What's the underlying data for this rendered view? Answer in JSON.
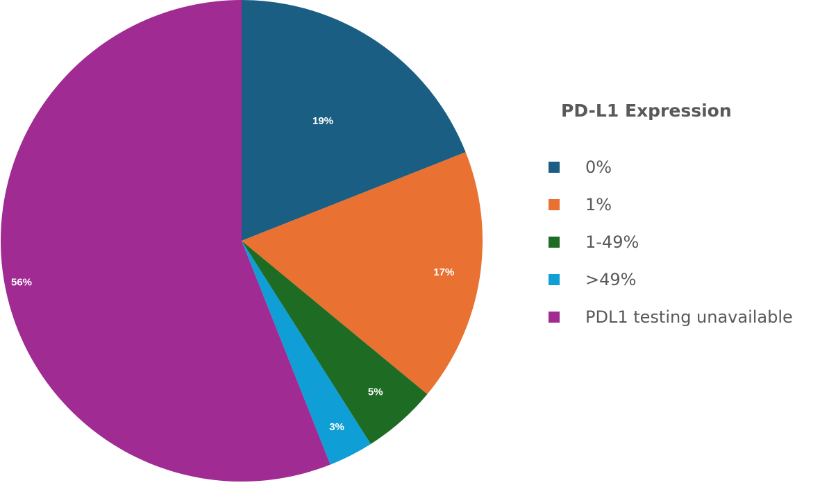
{
  "chart_data": {
    "type": "pie",
    "legend_title": "PD-L1 Expression",
    "legend_position": "right",
    "categories": [
      "0%",
      "1%",
      "1-49%",
      ">49%",
      "PDL1 testing unavailable"
    ],
    "values": [
      19,
      17,
      5,
      3,
      56
    ],
    "labels": [
      "19%",
      "17%",
      "5%",
      "3%",
      "56%"
    ],
    "colors": [
      "#1B5E83",
      "#E97132",
      "#1E6B24",
      "#0F9ED5",
      "#A02B93"
    ]
  }
}
